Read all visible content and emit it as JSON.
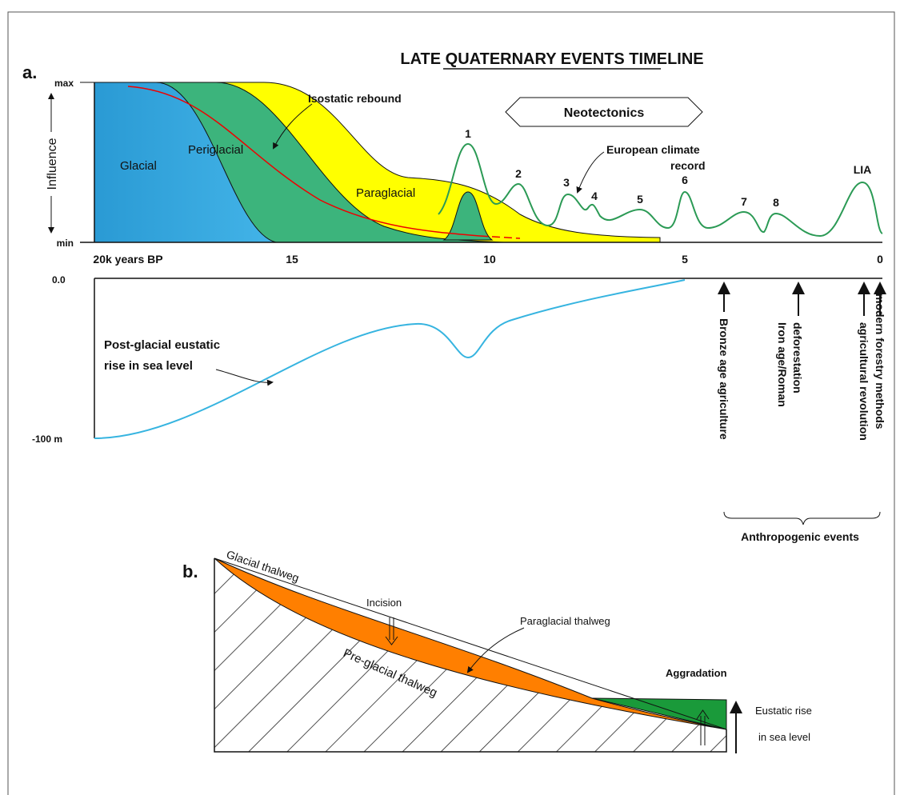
{
  "panel_a": {
    "label": "a.",
    "title": "LATE QUATERNARY EVENTS TIMELINE",
    "y_axis": {
      "max": "max",
      "min": "min",
      "label": "Influence"
    },
    "zones": [
      "Glacial",
      "Periglacial",
      "Paraglacial"
    ],
    "isostatic": "Isostatic rebound",
    "neotectonics": "Neotectonics",
    "climate_record": [
      "European climate",
      "record"
    ],
    "climate_peaks": [
      "1",
      "2",
      "3",
      "4",
      "5",
      "6",
      "7",
      "8",
      "LIA"
    ],
    "time_axis": [
      "20k years BP",
      "15",
      "10",
      "5",
      "0"
    ],
    "sea_level": {
      "top": "0.0",
      "bottom": "-100 m",
      "label": [
        "Post-glacial eustatic",
        "rise in sea level"
      ]
    },
    "anthropogenic": {
      "events": [
        [
          "Bronze age agriculture"
        ],
        [
          "Iron age/Roman",
          "deforestation"
        ],
        [
          "agricultural revolution"
        ],
        [
          "modern forestry methods"
        ]
      ],
      "label": "Anthropogenic events"
    }
  },
  "panel_b": {
    "label": "b.",
    "glacial": "Glacial thalweg",
    "incision": "Incision",
    "paraglacial": "Paraglacial thalweg",
    "preglacial": "Pre-glacial  thalweg",
    "aggradation": "Aggradation",
    "eustatic": [
      "Eustatic rise",
      "in sea level"
    ]
  }
}
